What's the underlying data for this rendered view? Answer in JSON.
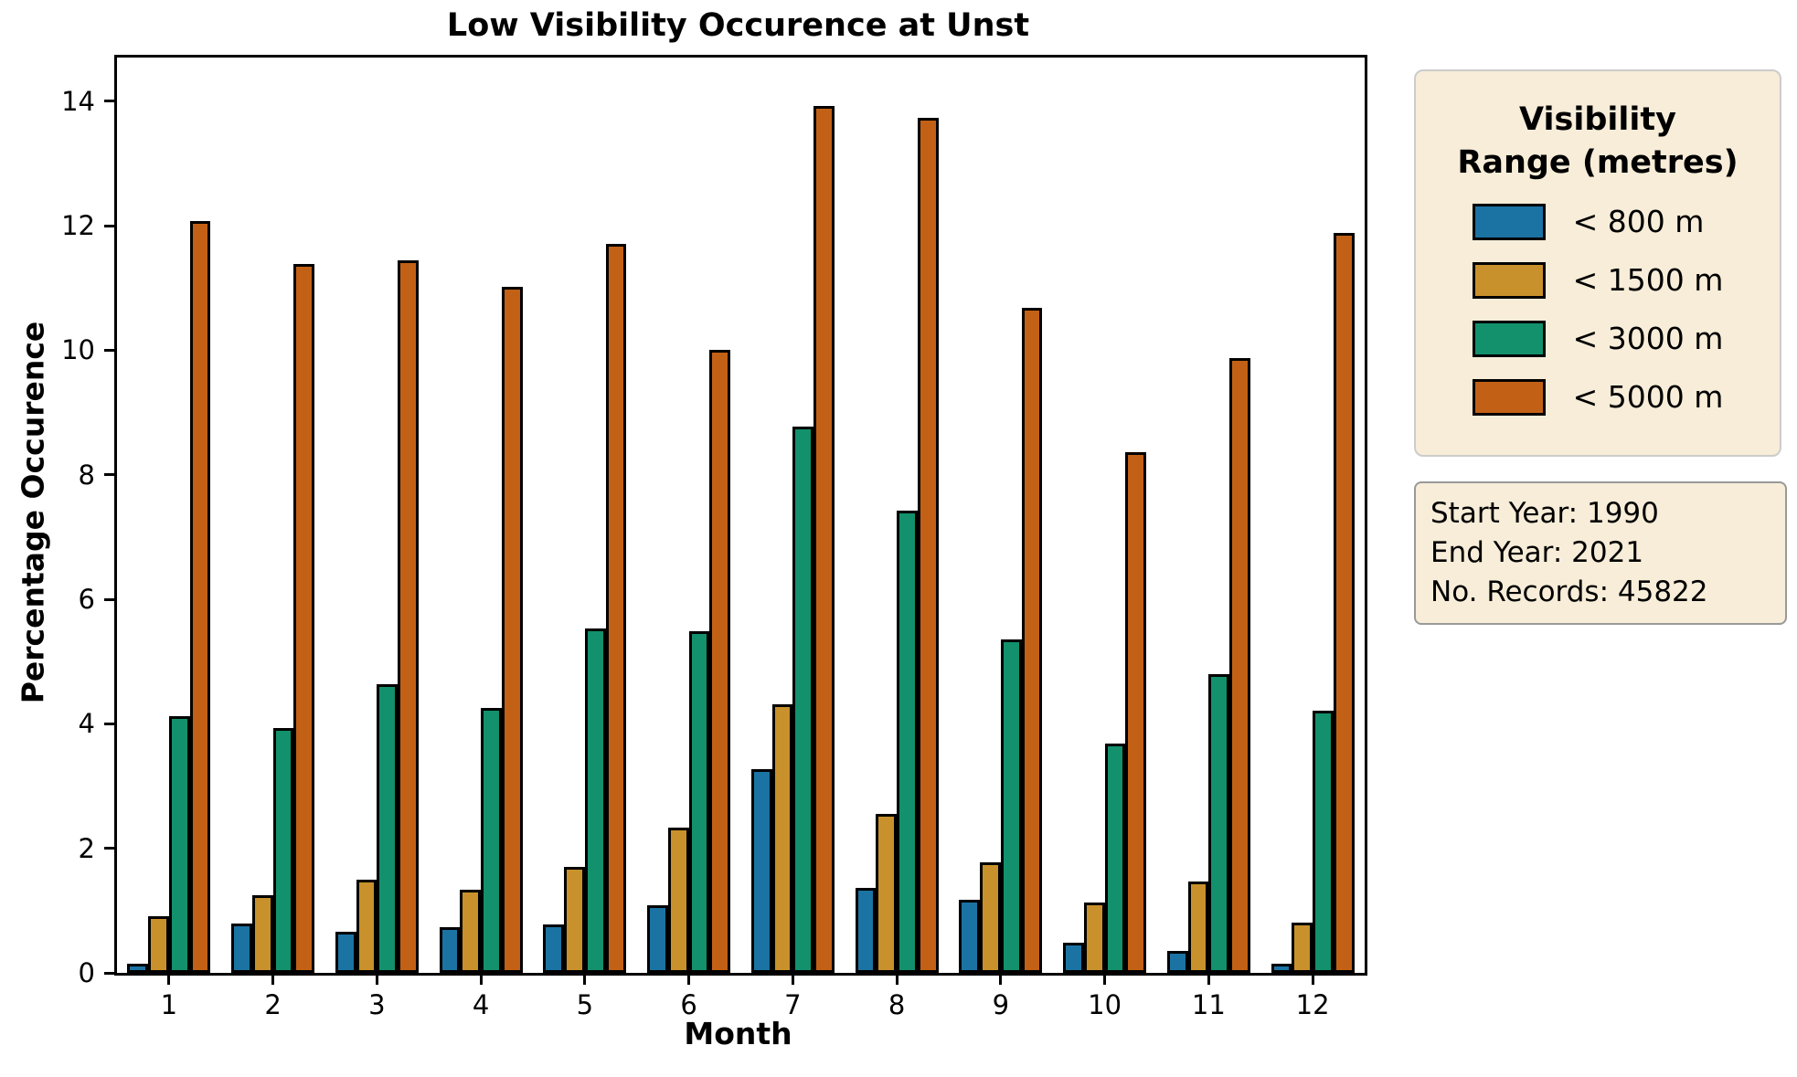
{
  "title": "Low Visibility Occurence at Unst",
  "x_axis": {
    "label": "Month"
  },
  "y_axis": {
    "label": "Percentage Occurence"
  },
  "legend": {
    "title_line1": "Visibility",
    "title_line2": "Range (metres)",
    "entries": [
      {
        "label": "< 800 m",
        "color": "#1b73a3"
      },
      {
        "label": "< 1500 m",
        "color": "#c8912b"
      },
      {
        "label": "< 3000 m",
        "color": "#12916c"
      },
      {
        "label": "< 5000 m",
        "color": "#c26115"
      }
    ]
  },
  "info_box": {
    "lines": [
      "Start Year: 1990",
      "End Year: 2021",
      "No. Records: 45822"
    ]
  },
  "colors": {
    "background": "#ffffff",
    "box_background": "#f7edd8",
    "legend_border": "#cccccc",
    "info_border": "#999999",
    "axis": "#000000"
  },
  "chart_data": {
    "type": "bar",
    "title": "Low Visibility Occurence at Unst",
    "xlabel": "Month",
    "ylabel": "Percentage Occurence",
    "categories": [
      1,
      2,
      3,
      4,
      5,
      6,
      7,
      8,
      9,
      10,
      11,
      12
    ],
    "series": [
      {
        "name": "< 800 m",
        "color": "#1b73a3",
        "values": [
          0.15,
          0.79,
          0.66,
          0.74,
          0.78,
          1.08,
          3.27,
          1.36,
          1.17,
          0.48,
          0.35,
          0.14
        ]
      },
      {
        "name": "< 1500 m",
        "color": "#c8912b",
        "values": [
          0.91,
          1.25,
          1.49,
          1.34,
          1.7,
          2.34,
          4.31,
          2.55,
          1.78,
          1.13,
          1.46,
          0.8
        ]
      },
      {
        "name": "< 3000 m",
        "color": "#12916c",
        "values": [
          4.12,
          3.93,
          4.64,
          4.25,
          5.53,
          5.48,
          8.78,
          7.42,
          5.36,
          3.68,
          4.8,
          4.21
        ]
      },
      {
        "name": "< 5000 m",
        "color": "#c26115",
        "values": [
          12.07,
          11.39,
          11.45,
          11.02,
          11.71,
          10.0,
          13.93,
          13.73,
          10.68,
          8.36,
          9.87,
          11.89
        ]
      }
    ],
    "ylim": [
      0,
      14.7
    ],
    "yticks": [
      0,
      2,
      4,
      6,
      8,
      10,
      12,
      14
    ],
    "grid": false,
    "legend_position": "outside-right",
    "legend_title": "Visibility Range (metres)"
  }
}
